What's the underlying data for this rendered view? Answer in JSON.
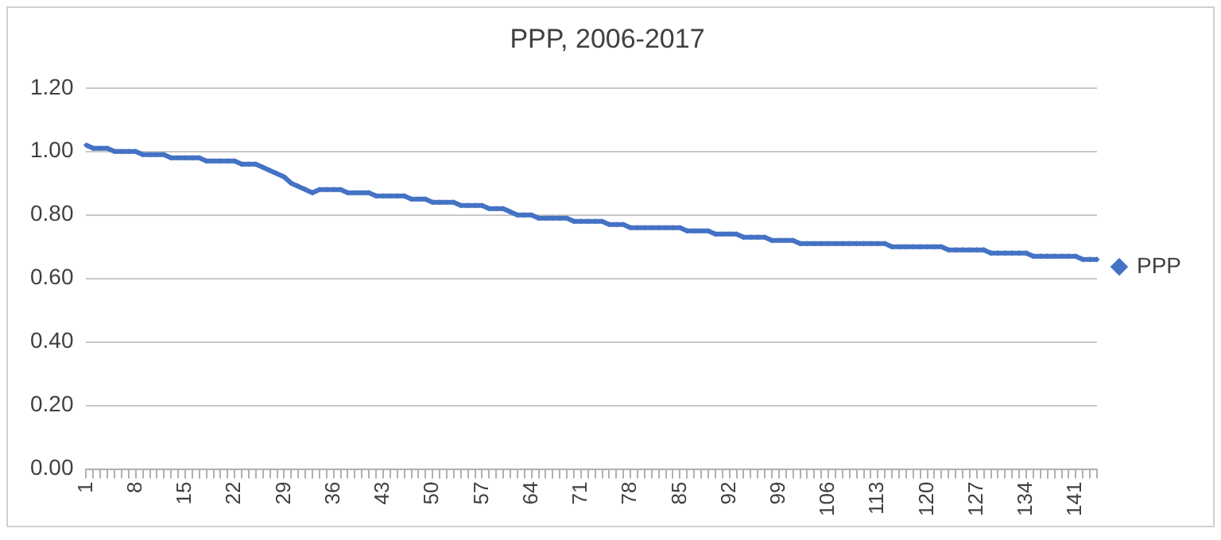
{
  "chart_data": {
    "type": "line",
    "title": "PPP, 2006-2017",
    "categories": [
      "1",
      null,
      null,
      null,
      null,
      null,
      null,
      "8",
      null,
      null,
      null,
      null,
      null,
      null,
      "15",
      null,
      null,
      null,
      null,
      null,
      null,
      "22",
      null,
      null,
      null,
      null,
      null,
      null,
      "29",
      null,
      null,
      null,
      null,
      null,
      null,
      "36",
      null,
      null,
      null,
      null,
      null,
      null,
      "43",
      null,
      null,
      null,
      null,
      null,
      null,
      "50",
      null,
      null,
      null,
      null,
      null,
      null,
      "57",
      null,
      null,
      null,
      null,
      null,
      null,
      "64",
      null,
      null,
      null,
      null,
      null,
      null,
      "71",
      null,
      null,
      null,
      null,
      null,
      null,
      "78",
      null,
      null,
      null,
      null,
      null,
      null,
      "85",
      null,
      null,
      null,
      null,
      null,
      null,
      "92",
      null,
      null,
      null,
      null,
      null,
      null,
      "99",
      null,
      null,
      null,
      null,
      null,
      null,
      "106",
      null,
      null,
      null,
      null,
      null,
      null,
      "113",
      null,
      null,
      null,
      null,
      null,
      null,
      "120",
      null,
      null,
      null,
      null,
      null,
      null,
      "127",
      null,
      null,
      null,
      null,
      null,
      null,
      "134",
      null,
      null,
      null,
      null,
      null,
      null,
      "141",
      null,
      null,
      null
    ],
    "series": [
      {
        "name": "PPP",
        "color": "#4472c4",
        "values": [
          1.02,
          1.01,
          1.01,
          1.01,
          1.0,
          1.0,
          1.0,
          1.0,
          0.99,
          0.99,
          0.99,
          0.99,
          0.98,
          0.98,
          0.98,
          0.98,
          0.98,
          0.97,
          0.97,
          0.97,
          0.97,
          0.97,
          0.96,
          0.96,
          0.96,
          0.95,
          0.94,
          0.93,
          0.92,
          0.9,
          0.89,
          0.88,
          0.87,
          0.88,
          0.88,
          0.88,
          0.88,
          0.87,
          0.87,
          0.87,
          0.87,
          0.86,
          0.86,
          0.86,
          0.86,
          0.86,
          0.85,
          0.85,
          0.85,
          0.84,
          0.84,
          0.84,
          0.84,
          0.83,
          0.83,
          0.83,
          0.83,
          0.82,
          0.82,
          0.82,
          0.81,
          0.8,
          0.8,
          0.8,
          0.79,
          0.79,
          0.79,
          0.79,
          0.79,
          0.78,
          0.78,
          0.78,
          0.78,
          0.78,
          0.77,
          0.77,
          0.77,
          0.76,
          0.76,
          0.76,
          0.76,
          0.76,
          0.76,
          0.76,
          0.76,
          0.75,
          0.75,
          0.75,
          0.75,
          0.74,
          0.74,
          0.74,
          0.74,
          0.73,
          0.73,
          0.73,
          0.73,
          0.72,
          0.72,
          0.72,
          0.72,
          0.71,
          0.71,
          0.71,
          0.71,
          0.71,
          0.71,
          0.71,
          0.71,
          0.71,
          0.71,
          0.71,
          0.71,
          0.71,
          0.7,
          0.7,
          0.7,
          0.7,
          0.7,
          0.7,
          0.7,
          0.7,
          0.69,
          0.69,
          0.69,
          0.69,
          0.69,
          0.69,
          0.68,
          0.68,
          0.68,
          0.68,
          0.68,
          0.68,
          0.67,
          0.67,
          0.67,
          0.67,
          0.67,
          0.67,
          0.67,
          0.66,
          0.66,
          0.66
        ]
      }
    ],
    "ylim": [
      0,
      1.2
    ],
    "yticks": [
      {
        "value": 0,
        "label": "0.00"
      },
      {
        "value": 0.2,
        "label": "0.20"
      },
      {
        "value": 0.4,
        "label": "0.40"
      },
      {
        "value": 0.6,
        "label": "0.60"
      },
      {
        "value": 0.8,
        "label": "0.80"
      },
      {
        "value": 1.0,
        "label": "1.00"
      },
      {
        "value": 1.2,
        "label": "1.20"
      }
    ],
    "grid": "y",
    "legend": "right",
    "marker": "diamond",
    "line_style": "solid"
  }
}
